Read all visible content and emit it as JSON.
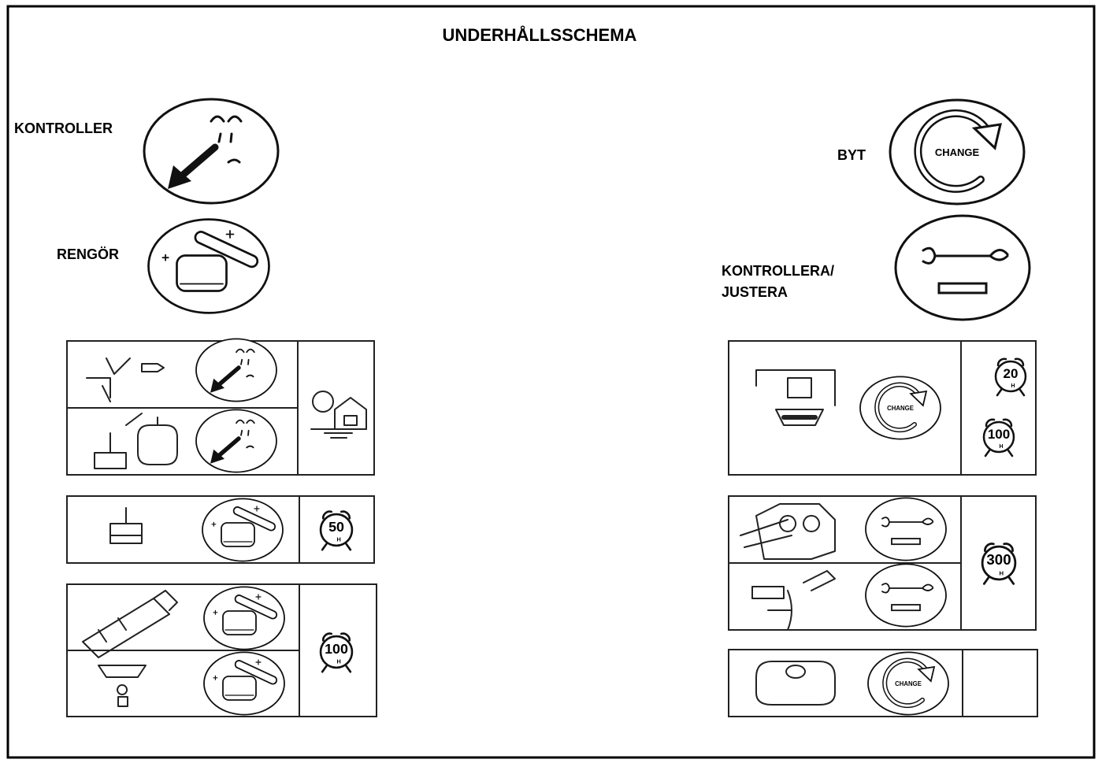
{
  "title": "UNDERHÅLLSSCHEMA",
  "legend": [
    {
      "label": "KONTROLLER"
    },
    {
      "label": "RENGÖR"
    },
    {
      "label": "BYT"
    },
    {
      "label_lines": [
        "KONTROLLERA/",
        "JUSTERA"
      ]
    }
  ],
  "change_icon_text": "CHANGE",
  "hour_unit": "H",
  "intervals": [
    50,
    100,
    20,
    100,
    300
  ]
}
